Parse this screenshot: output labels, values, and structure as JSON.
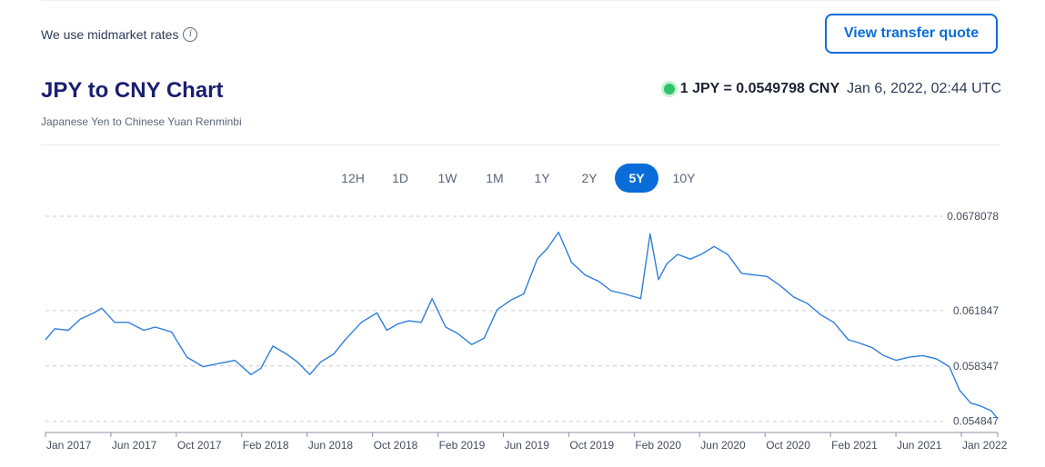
{
  "header": {
    "rates_note": "We use midmarket rates",
    "info_icon": "info-icon",
    "quote_button": "View transfer quote"
  },
  "title": "JPY to CNY Chart",
  "subtitle": "Japanese Yen to Chinese Yuan Renminbi",
  "rate": {
    "text": "1 JPY = 0.0549798 CNY",
    "timestamp": "Jan 6, 2022, 02:44 UTC",
    "status_color": "#2ec36a"
  },
  "tabs": [
    {
      "label": "12H",
      "active": false
    },
    {
      "label": "1D",
      "active": false
    },
    {
      "label": "1W",
      "active": false
    },
    {
      "label": "1M",
      "active": false
    },
    {
      "label": "1Y",
      "active": false
    },
    {
      "label": "2Y",
      "active": false
    },
    {
      "label": "5Y",
      "active": true
    },
    {
      "label": "10Y",
      "active": false
    }
  ],
  "colors": {
    "accent": "#0a6cd8",
    "line": "#2f7ddd",
    "title": "#1a1f71"
  },
  "chart_data": {
    "type": "line",
    "x_tick_labels": [
      "Jan 2017",
      "Jun 2017",
      "Oct 2017",
      "Feb 2018",
      "Jun 2018",
      "Oct 2018",
      "Feb 2019",
      "Jun 2019",
      "Oct 2019",
      "Feb 2020",
      "Jun 2020",
      "Oct 2020",
      "Feb 2021",
      "Jun 2021",
      "Jan 2022"
    ],
    "y_tick_labels": [
      "0.0678078",
      "0.061847",
      "0.058347",
      "0.054847"
    ],
    "y_ticks": [
      0.0678078,
      0.061847,
      0.058347,
      0.054847
    ],
    "ylim": [
      0.05414,
      0.06781
    ],
    "grid": "horizontal dashed",
    "series": [
      {
        "x": [
          "2017-01-02",
          "2017-01-20",
          "2017-02-15",
          "2017-03-10",
          "2017-04-05",
          "2017-04-20",
          "2017-05-15",
          "2017-06-10",
          "2017-07-10",
          "2017-08-01",
          "2017-09-01",
          "2017-10-01",
          "2017-11-01",
          "2017-12-01",
          "2018-01-01",
          "2018-02-01",
          "2018-02-20",
          "2018-03-15",
          "2018-04-10",
          "2018-05-01",
          "2018-05-25",
          "2018-06-15",
          "2018-07-10",
          "2018-08-01",
          "2018-09-01",
          "2018-10-01",
          "2018-10-20",
          "2018-11-10",
          "2018-12-01",
          "2018-12-25",
          "2019-01-15",
          "2019-02-10",
          "2019-03-05",
          "2019-04-01",
          "2019-04-25",
          "2019-05-20",
          "2019-06-15",
          "2019-07-10",
          "2019-08-05",
          "2019-08-25",
          "2019-09-15",
          "2019-10-10",
          "2019-11-05",
          "2019-12-01",
          "2019-12-25",
          "2020-01-20",
          "2020-02-20",
          "2020-03-09",
          "2020-03-25",
          "2020-04-10",
          "2020-05-01",
          "2020-05-25",
          "2020-06-15",
          "2020-07-10",
          "2020-08-05",
          "2020-09-01",
          "2020-09-25",
          "2020-10-20",
          "2020-11-15",
          "2020-12-10",
          "2021-01-05",
          "2021-01-30",
          "2021-02-25",
          "2021-03-25",
          "2021-04-15",
          "2021-05-10",
          "2021-06-01",
          "2021-06-25",
          "2021-07-20",
          "2021-08-15",
          "2021-09-10",
          "2021-10-05",
          "2021-10-25",
          "2021-11-15",
          "2021-12-05",
          "2021-12-25",
          "2022-01-06"
        ],
        "y": [
          0.06,
          0.0607,
          0.0606,
          0.0613,
          0.0617,
          0.062,
          0.0611,
          0.0611,
          0.0606,
          0.0608,
          0.0605,
          0.0589,
          0.0583,
          0.0585,
          0.0587,
          0.0578,
          0.0582,
          0.0596,
          0.0591,
          0.0586,
          0.0578,
          0.0586,
          0.0591,
          0.06,
          0.0611,
          0.0617,
          0.0606,
          0.061,
          0.0612,
          0.0611,
          0.0626,
          0.0608,
          0.0604,
          0.0597,
          0.0601,
          0.0619,
          0.0625,
          0.0629,
          0.0651,
          0.0658,
          0.0668,
          0.0649,
          0.0641,
          0.0637,
          0.0631,
          0.0629,
          0.0626,
          0.0667,
          0.0638,
          0.0648,
          0.0654,
          0.0651,
          0.0654,
          0.0659,
          0.0654,
          0.0642,
          0.0641,
          0.064,
          0.0634,
          0.0627,
          0.0623,
          0.0616,
          0.0611,
          0.06,
          0.0598,
          0.0595,
          0.059,
          0.0587,
          0.0589,
          0.059,
          0.0588,
          0.0583,
          0.0568,
          0.056,
          0.0558,
          0.0555,
          0.055
        ]
      }
    ]
  }
}
